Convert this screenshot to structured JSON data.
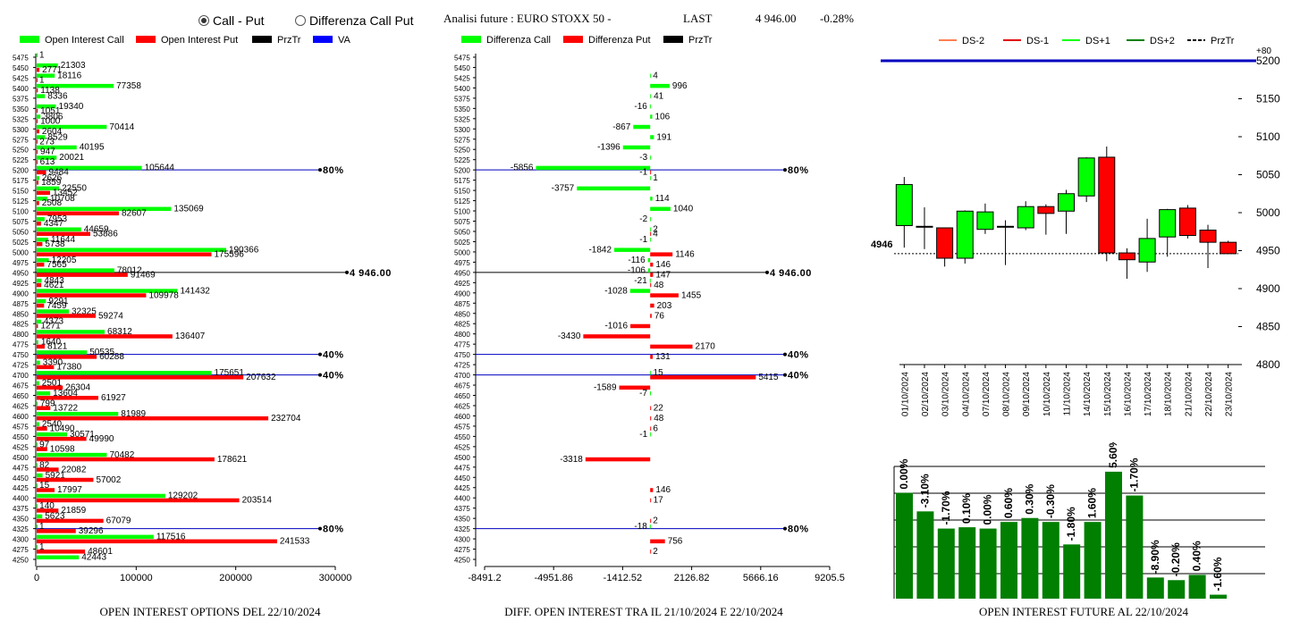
{
  "controls": {
    "radio_call_put": {
      "label": "Call - Put",
      "selected": true
    },
    "radio_diff": {
      "label": "Differenza Call Put",
      "selected": false
    }
  },
  "header": {
    "title": "Analisi future : EURO STOXX 50 -",
    "last_label": "LAST",
    "last_value": "4 946.00",
    "change": "-0.28%"
  },
  "captions": {
    "left": "OPEN INTEREST OPTIONS DEL 22/10/2024",
    "middle": "DIFF. OPEN INTEREST TRA IL 21/10/2024 E 22/10/2024",
    "right": "OPEN INTEREST FUTURE AL 22/10/2024"
  },
  "colors": {
    "call": "#00ff00",
    "put": "#ff0000",
    "prztr": "#000000",
    "va": "#0000ff",
    "up_candle": "#00ff00",
    "down_candle": "#ff0000",
    "oi_bar": "#007f00",
    "grid": "#000000",
    "ds1": "#e00000",
    "ds2": "#ff7f50",
    "dsp1": "#00ff00",
    "dsp2": "#008000"
  },
  "chart_data": [
    {
      "type": "bar",
      "id": "open_interest_options",
      "orientation": "horizontal",
      "legend": [
        "Open Interest Call",
        "Open Interest Put",
        "PrzTr",
        "VA"
      ],
      "xlim": [
        0,
        300000
      ],
      "xticks": [
        "0",
        "100000",
        "200000",
        "300000"
      ],
      "strikes": [
        5475,
        5450,
        5425,
        5400,
        5375,
        5350,
        5325,
        5300,
        5275,
        5250,
        5225,
        5200,
        5175,
        5150,
        5125,
        5100,
        5075,
        5050,
        5025,
        5000,
        4975,
        4950,
        4925,
        4900,
        4875,
        4850,
        4825,
        4800,
        4775,
        4750,
        4725,
        4700,
        4675,
        4650,
        4625,
        4600,
        4575,
        4550,
        4525,
        4500,
        4475,
        4450,
        4425,
        4400,
        4375,
        4350,
        4325,
        4300,
        4275,
        4250
      ],
      "series": [
        {
          "name": "Open Interest Call",
          "values": [
            1,
            21303,
            18116,
            77358,
            8336,
            19340,
            3806,
            70414,
            8529,
            40195,
            20021,
            105644,
            2626,
            22550,
            10708,
            135069,
            7953,
            44659,
            11644,
            190366,
            12205,
            78012,
            4843,
            141432,
            9291,
            32325,
            4373,
            68312,
            1640,
            50535,
            3390,
            175651,
            2501,
            13604,
            799,
            81989,
            2540,
            30571,
            97,
            70482,
            82,
            5921,
            15,
            129202,
            140,
            5623,
            1,
            117516,
            1,
            42443
          ]
        },
        {
          "name": "Open Interest Put",
          "values": [
            null,
            2771,
            1,
            1138,
            null,
            1051,
            1000,
            2604,
            273,
            947,
            613,
            9484,
            1859,
            13452,
            2508,
            82607,
            4347,
            53886,
            5738,
            175596,
            7565,
            91469,
            4621,
            109978,
            7459,
            59274,
            1271,
            136407,
            8121,
            60288,
            17380,
            207632,
            26304,
            61927,
            13722,
            232704,
            10490,
            49990,
            10598,
            178621,
            22082,
            57002,
            17997,
            203514,
            21859,
            67079,
            39296,
            241533,
            48601,
            null
          ]
        }
      ],
      "lines": [
        {
          "label": "80%",
          "strike": 5200
        },
        {
          "label": "4 946.00",
          "strike": 4950
        },
        {
          "label": "40%",
          "strike": 4750
        },
        {
          "label": "40%",
          "strike": 4700
        },
        {
          "label": "80%",
          "strike": 4325
        }
      ]
    },
    {
      "type": "bar",
      "id": "diff_open_interest",
      "orientation": "horizontal",
      "legend": [
        "Differenza Call",
        "Differenza Put",
        "PrzTr"
      ],
      "xlim": [
        -8491.2,
        9205.5
      ],
      "xticks": [
        "-8491.2",
        "-4951.86",
        "-1412.52",
        "2126.82",
        "5666.16",
        "9205.5"
      ],
      "strikes": [
        5475,
        5450,
        5425,
        5400,
        5375,
        5350,
        5325,
        5300,
        5275,
        5250,
        5225,
        5200,
        5175,
        5150,
        5125,
        5100,
        5075,
        5050,
        5025,
        5000,
        4975,
        4950,
        4925,
        4900,
        4875,
        4850,
        4825,
        4800,
        4775,
        4750,
        4725,
        4700,
        4675,
        4650,
        4625,
        4600,
        4575,
        4550,
        4525,
        4500,
        4475,
        4450,
        4425,
        4400,
        4375,
        4350,
        4325,
        4300,
        4275,
        4250
      ],
      "series": [
        {
          "name": "Differenza Call",
          "values": [
            null,
            null,
            4,
            996,
            41,
            -16,
            106,
            -867,
            191,
            -1396,
            -3,
            -5856,
            1,
            -3757,
            114,
            1040,
            -2,
            2,
            -1,
            -1842,
            -116,
            -106,
            -21,
            -1028,
            null,
            null,
            null,
            null,
            null,
            null,
            null,
            15,
            null,
            -7,
            null,
            null,
            null,
            -1,
            null,
            null,
            null,
            null,
            null,
            null,
            null,
            null,
            -18,
            null,
            null,
            null
          ]
        },
        {
          "name": "Differenza Put",
          "values": [
            null,
            null,
            null,
            null,
            null,
            null,
            null,
            null,
            null,
            null,
            null,
            -1,
            null,
            null,
            null,
            null,
            null,
            4,
            null,
            1146,
            146,
            147,
            48,
            1455,
            203,
            76,
            -1016,
            -3430,
            2170,
            131,
            null,
            5415,
            -1589,
            null,
            22,
            48,
            6,
            null,
            null,
            -3318,
            null,
            null,
            146,
            17,
            null,
            2,
            null,
            756,
            2,
            null
          ]
        }
      ],
      "lines": [
        {
          "label": "80%",
          "strike": 5200
        },
        {
          "label": "4 946.00",
          "strike": 4950
        },
        {
          "label": "40%",
          "strike": 4750
        },
        {
          "label": "40%",
          "strike": 4700
        },
        {
          "label": "80%",
          "strike": 4325
        }
      ]
    },
    {
      "type": "candlestick",
      "id": "future_price",
      "legend": [
        "DS-2",
        "DS-1",
        "DS+1",
        "DS+2",
        "PrzTr"
      ],
      "ylim": [
        4800,
        5200
      ],
      "yticks": [
        "5200",
        "5150",
        "5100",
        "5050",
        "5000",
        "4950",
        "4900",
        "4850",
        "4800"
      ],
      "top_line_label": "+80",
      "last_label": "4946",
      "last_value": 4946,
      "dates": [
        "01/10/2024",
        "02/10/2024",
        "03/10/2024",
        "04/10/2024",
        "07/10/2024",
        "08/10/2024",
        "09/10/2024",
        "10/10/2024",
        "11/10/2024",
        "14/10/2024",
        "15/10/2024",
        "16/10/2024",
        "17/10/2024",
        "18/10/2024",
        "21/10/2024",
        "22/10/2024",
        "23/10/2024"
      ],
      "candles": [
        {
          "o": 4983,
          "h": 5047,
          "l": 4954,
          "c": 5037
        },
        {
          "o": 4982,
          "h": 5007,
          "l": 4952,
          "c": 4982
        },
        {
          "o": 4980,
          "h": 4980,
          "l": 4929,
          "c": 4940
        },
        {
          "o": 4940,
          "h": 5003,
          "l": 4933,
          "c": 5002
        },
        {
          "o": 4978,
          "h": 5012,
          "l": 4972,
          "c": 5001
        },
        {
          "o": 4982,
          "h": 4990,
          "l": 4931,
          "c": 4982
        },
        {
          "o": 4980,
          "h": 5015,
          "l": 4977,
          "c": 5008
        },
        {
          "o": 5008,
          "h": 5011,
          "l": 4971,
          "c": 4999
        },
        {
          "o": 5002,
          "h": 5030,
          "l": 4972,
          "c": 5025
        },
        {
          "o": 5022,
          "h": 5073,
          "l": 5014,
          "c": 5072
        },
        {
          "o": 5073,
          "h": 5087,
          "l": 4936,
          "c": 4947
        },
        {
          "o": 4947,
          "h": 4953,
          "l": 4913,
          "c": 4938
        },
        {
          "o": 4935,
          "h": 4992,
          "l": 4922,
          "c": 4966
        },
        {
          "o": 4968,
          "h": 5005,
          "l": 4942,
          "c": 5004
        },
        {
          "o": 5006,
          "h": 5010,
          "l": 4966,
          "c": 4970
        },
        {
          "o": 4977,
          "h": 4984,
          "l": 4927,
          "c": 4961
        },
        {
          "o": 4961,
          "h": 4963,
          "l": 4946,
          "c": 4946
        }
      ]
    },
    {
      "type": "bar",
      "id": "open_interest_future",
      "categories": [
        "01/10/2024",
        "02/10/2024",
        "03/10/2024",
        "04/10/2024",
        "07/10/2024",
        "08/10/2024",
        "09/10/2024",
        "10/10/2024",
        "11/10/2024",
        "14/10/2024",
        "15/10/2024",
        "16/10/2024",
        "17/10/2024",
        "18/10/2024",
        "21/10/2024",
        "22/10/2024",
        "23/10/2024"
      ],
      "labels": [
        "0.00%",
        "-3.10%",
        "-1.70%",
        "0.10%",
        "0.00%",
        "0.60%",
        "0.30%",
        "-0.30%",
        "-1.80%",
        "1.60%",
        "5.60%",
        "-1.70%",
        "-8.90%",
        "-0.20%",
        "0.40%",
        "-1.60%",
        ""
      ],
      "relative_height": [
        0.8,
        0.66,
        0.53,
        0.54,
        0.53,
        0.58,
        0.61,
        0.58,
        0.41,
        0.58,
        0.96,
        0.78,
        0.16,
        0.14,
        0.18,
        0.03,
        0
      ],
      "grid": true
    }
  ]
}
